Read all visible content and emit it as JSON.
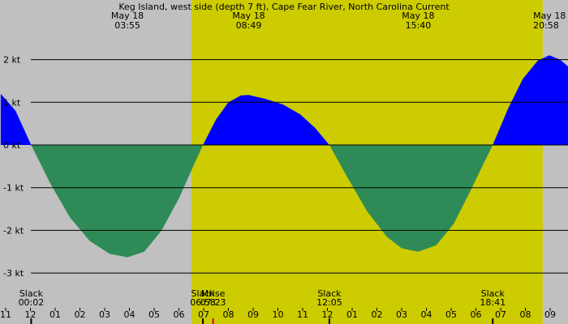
{
  "chart_data": {
    "type": "area",
    "title": "Keg Island, west side (depth 7 ft), Cape Fear River, North Carolina Current",
    "unit": "kt",
    "xlim": [
      -1,
      9.5
    ],
    "ylim": [
      -3.4,
      3.4
    ],
    "day_band": {
      "start": 6.5,
      "end": 20.7
    },
    "y_ticks": [
      {
        "value": 2,
        "label": "2 kt"
      },
      {
        "value": 1,
        "label": "1 kt"
      },
      {
        "value": 0,
        "label": "0 kt"
      },
      {
        "value": -1,
        "label": "-1 kt"
      },
      {
        "value": -2,
        "label": "-2 kt"
      },
      {
        "value": -3,
        "label": "-3 kt"
      }
    ],
    "x_ticks": [
      {
        "hour": -1,
        "label": "11"
      },
      {
        "hour": 0,
        "label": "12"
      },
      {
        "hour": 1,
        "label": "01"
      },
      {
        "hour": 2,
        "label": "02"
      },
      {
        "hour": 3,
        "label": "03"
      },
      {
        "hour": 4,
        "label": "04"
      },
      {
        "hour": 5,
        "label": "05"
      },
      {
        "hour": 6,
        "label": "06"
      },
      {
        "hour": 7,
        "label": "07"
      },
      {
        "hour": 8,
        "label": "08"
      },
      {
        "hour": 9,
        "label": "09"
      },
      {
        "hour": 10,
        "label": "10"
      },
      {
        "hour": 11,
        "label": "11"
      },
      {
        "hour": 12,
        "label": "12"
      },
      {
        "hour": 13,
        "label": "01"
      },
      {
        "hour": 14,
        "label": "02"
      },
      {
        "hour": 15,
        "label": "03"
      },
      {
        "hour": 16,
        "label": "04"
      },
      {
        "hour": 17,
        "label": "05"
      },
      {
        "hour": 18,
        "label": "06"
      },
      {
        "hour": 19,
        "label": "07"
      },
      {
        "hour": 20,
        "label": "08"
      },
      {
        "hour": 21,
        "label": "09"
      }
    ],
    "peak_labels": [
      {
        "hour": 3.92,
        "date": "May 18",
        "time": "03:55"
      },
      {
        "hour": 8.82,
        "date": "May 18",
        "time": "08:49"
      },
      {
        "hour": 15.67,
        "date": "May 18",
        "time": "15:40"
      },
      {
        "hour": 20.97,
        "date": "May 18",
        "time": "20:58"
      }
    ],
    "event_labels": [
      {
        "hour": 0.03,
        "name": "Slack",
        "time": "00:02"
      },
      {
        "hour": 6.97,
        "name": "Slack",
        "time": "06:58"
      },
      {
        "hour": 7.38,
        "name": "Mrise",
        "time": "07:23"
      },
      {
        "hour": 12.08,
        "name": "Slack",
        "time": "12:05"
      },
      {
        "hour": 18.68,
        "name": "Slack",
        "time": "18:41"
      }
    ],
    "series": [
      {
        "flood_color": "#0000ff",
        "ebb_color": "#2e8b57",
        "points": [
          {
            "hour": -1.2,
            "speed": 1.2
          },
          {
            "hour": -0.6,
            "speed": 0.8
          },
          {
            "hour": 0.03,
            "speed": 0
          },
          {
            "hour": 0.8,
            "speed": -0.9
          },
          {
            "hour": 1.6,
            "speed": -1.7
          },
          {
            "hour": 2.4,
            "speed": -2.25
          },
          {
            "hour": 3.2,
            "speed": -2.55
          },
          {
            "hour": 3.92,
            "speed": -2.63
          },
          {
            "hour": 4.6,
            "speed": -2.5
          },
          {
            "hour": 5.3,
            "speed": -2.0
          },
          {
            "hour": 6.0,
            "speed": -1.25
          },
          {
            "hour": 6.5,
            "speed": -0.6
          },
          {
            "hour": 6.97,
            "speed": 0
          },
          {
            "hour": 7.5,
            "speed": 0.6
          },
          {
            "hour": 8.0,
            "speed": 1.0
          },
          {
            "hour": 8.5,
            "speed": 1.16
          },
          {
            "hour": 8.82,
            "speed": 1.17
          },
          {
            "hour": 9.5,
            "speed": 1.08
          },
          {
            "hour": 10.2,
            "speed": 0.95
          },
          {
            "hour": 10.9,
            "speed": 0.72
          },
          {
            "hour": 11.5,
            "speed": 0.4
          },
          {
            "hour": 12.08,
            "speed": 0
          },
          {
            "hour": 12.8,
            "speed": -0.75
          },
          {
            "hour": 13.6,
            "speed": -1.55
          },
          {
            "hour": 14.4,
            "speed": -2.15
          },
          {
            "hour": 15.0,
            "speed": -2.42
          },
          {
            "hour": 15.67,
            "speed": -2.5
          },
          {
            "hour": 16.4,
            "speed": -2.35
          },
          {
            "hour": 17.1,
            "speed": -1.85
          },
          {
            "hour": 17.8,
            "speed": -1.05
          },
          {
            "hour": 18.3,
            "speed": -0.45
          },
          {
            "hour": 18.68,
            "speed": 0
          },
          {
            "hour": 19.3,
            "speed": 0.85
          },
          {
            "hour": 19.9,
            "speed": 1.55
          },
          {
            "hour": 20.5,
            "speed": 1.98
          },
          {
            "hour": 20.97,
            "speed": 2.1
          },
          {
            "hour": 21.4,
            "speed": 2.0
          },
          {
            "hour": 21.8,
            "speed": 1.8
          }
        ]
      }
    ]
  }
}
